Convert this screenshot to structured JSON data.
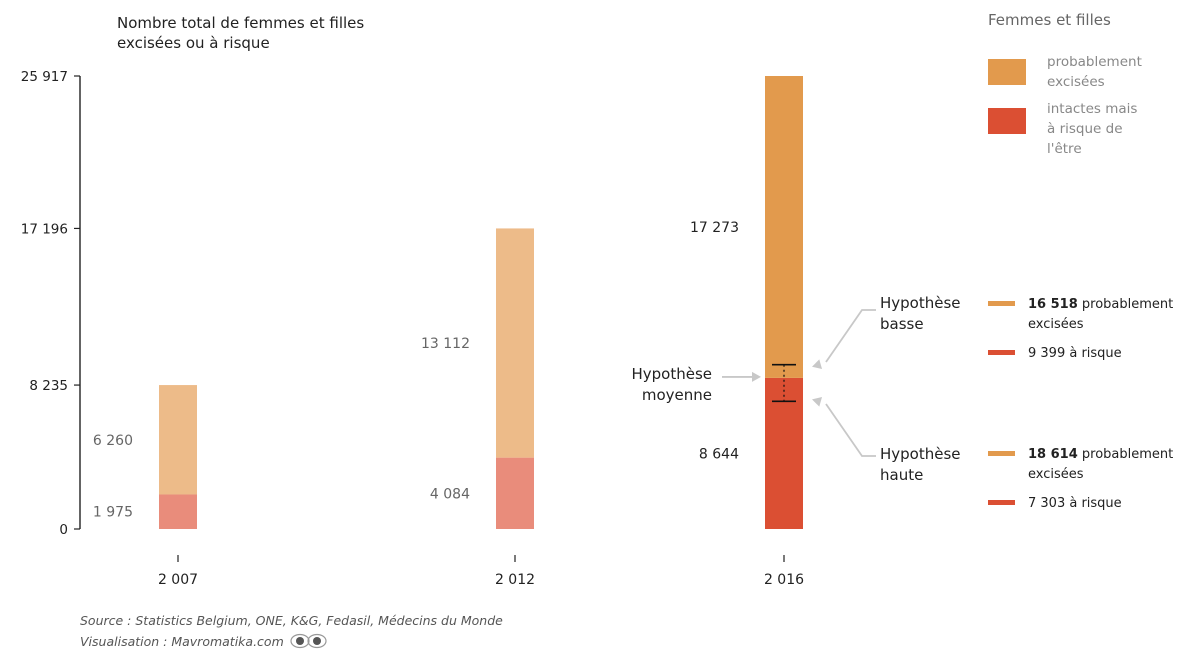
{
  "chart_data": {
    "type": "bar",
    "stacked": true,
    "title_lines": [
      "Nombre total de femmes et filles",
      "excisées ou à risque"
    ],
    "categories": [
      "2 007",
      "2 012",
      "2 016"
    ],
    "yticks": [
      "25 917",
      "17 196",
      "8 235",
      "0"
    ],
    "ytick_values": [
      25917,
      17196,
      8235,
      0
    ],
    "ylim": [
      0,
      25917
    ],
    "grid": false,
    "series": [
      {
        "name": "intactes mais à risque de l'être",
        "values": [
          1975,
          4084,
          8644
        ],
        "labels": [
          "1 975",
          "4 084",
          "8 644"
        ]
      },
      {
        "name": "probablement excisées",
        "values": [
          6260,
          13112,
          17273
        ],
        "labels": [
          "6 260",
          "13 112",
          "17 273"
        ]
      }
    ],
    "legend": {
      "title": "Femmes et filles",
      "position": "top-right",
      "items": [
        {
          "lines": [
            "probablement",
            "excisées"
          ]
        },
        {
          "lines": [
            "intactes mais",
            "à risque de",
            "l'être"
          ]
        }
      ]
    },
    "annotations": {
      "moyenne": [
        "Hypothèse",
        "moyenne"
      ],
      "basse": {
        "label": [
          "Hypothèse",
          "basse"
        ],
        "excised_bold": "16 518",
        "excised_rest": " probablement",
        "excised_line2": "excisées",
        "risk_text": "9 399 à risque",
        "excised_value": 16518,
        "risk_value": 9399
      },
      "haute": {
        "label": [
          "Hypothèse",
          "haute"
        ],
        "excised_bold": "18 614",
        "excised_rest": " probablement",
        "excised_line2": "excisées",
        "risk_text": "7 303 à risque",
        "excised_value": 18614,
        "risk_value": 7303
      }
    }
  },
  "colors": {
    "excised": "#e29a4d",
    "risk": "#db4f33",
    "excised_light": "#edbb89",
    "risk_light": "#e98c7b"
  },
  "source": "Source : Statistics Belgium, ONE, K&G, Fedasil, Médecins du Monde",
  "visualisation": "Visualisation : Mavromatika.com"
}
